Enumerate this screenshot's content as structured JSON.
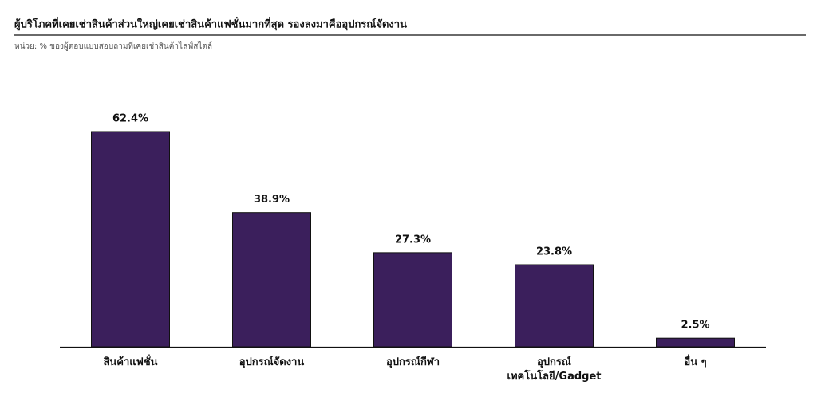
{
  "chart_data": {
    "type": "bar",
    "title": "ผู้บริโภคที่เคยเช่าสินค้าส่วนใหญ่เคยเช่าสินค้าแฟชั่นมากที่สุด รองลงมาคืออุปกรณ์จัดงาน",
    "subtitle": "หน่วย: % ของผู้ตอบแบบสอบถามที่เคยเช่าสินค้าไลฟ์สไตล์",
    "categories": [
      "สินค้าแฟชั่น",
      "อุปกรณ์จัดงาน",
      "อุปกรณ์กีฬา",
      "อุปกรณ์\nเทคโนโลยี/Gadget",
      "อื่น ๆ"
    ],
    "values": [
      62.4,
      38.9,
      27.3,
      23.8,
      2.5
    ],
    "value_labels": [
      "62.4%",
      "38.9%",
      "27.3%",
      "23.8%",
      "2.5%"
    ],
    "color": "#3b1f5c"
  }
}
